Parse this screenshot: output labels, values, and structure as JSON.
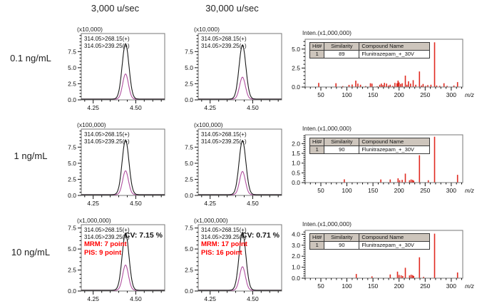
{
  "page": {
    "column_headers": [
      "3,000 u/sec",
      "30,000 u/sec"
    ],
    "row_labels": [
      "0.1 ng/mL",
      "1 ng/mL",
      "10 ng/mL"
    ]
  },
  "chart_data": [
    {
      "kind": "chromatogram",
      "type": "line",
      "concentration": "0.1 ng/mL",
      "scan_speed": "3,000 u/sec",
      "scale_label": "(x10,000)",
      "trace_labels": [
        "314.05>268.15(+)",
        "314.05>239.25(+)"
      ],
      "xlim": [
        4.18,
        4.67
      ],
      "ylim": [
        0,
        10.3
      ],
      "x_ticks": [
        [
          4.25,
          "4.25"
        ],
        [
          4.5,
          "4.50"
        ]
      ],
      "y_ticks": [
        [
          0,
          "0.0"
        ],
        [
          2.5,
          "2.5"
        ],
        [
          5,
          "5.0"
        ],
        [
          7.5,
          "7.5"
        ]
      ],
      "x_minor": 0.05,
      "y_minor": 0.5,
      "retention_time": 4.44,
      "peaks": [
        {
          "series": "314.05>268.15(+)",
          "color": "#1a1a1a",
          "height": 8.6,
          "sigma": 0.02
        },
        {
          "series": "314.05>239.25(+)",
          "color": "#b0509f",
          "height": 3.9,
          "sigma": 0.017
        }
      ]
    },
    {
      "kind": "chromatogram",
      "type": "line",
      "concentration": "0.1 ng/mL",
      "scan_speed": "30,000 u/sec",
      "scale_label": "(x10,000)",
      "trace_labels": [
        "314.05>268.15(+)",
        "314.05>239.25(+)"
      ],
      "xlim": [
        4.18,
        4.67
      ],
      "ylim": [
        0,
        10.3
      ],
      "x_ticks": [
        [
          4.25,
          "4.25"
        ],
        [
          4.5,
          "4.50"
        ]
      ],
      "y_ticks": [
        [
          0,
          "0.0"
        ],
        [
          2.5,
          "2.5"
        ],
        [
          5,
          "5.0"
        ],
        [
          7.5,
          "7.5"
        ]
      ],
      "x_minor": 0.05,
      "y_minor": 0.5,
      "retention_time": 4.44,
      "peaks": [
        {
          "series": "314.05>268.15(+)",
          "color": "#1a1a1a",
          "height": 8.4,
          "sigma": 0.02
        },
        {
          "series": "314.05>239.25(+)",
          "color": "#b0509f",
          "height": 3.4,
          "sigma": 0.017
        }
      ]
    },
    {
      "kind": "spectrum",
      "type": "bar",
      "concentration": "0.1 ng/mL",
      "title": "Inten.(x1,000,000)",
      "xlabel": "m/z",
      "xlim": [
        20,
        322
      ],
      "ylim": [
        0,
        6.3
      ],
      "x_ticks": [
        [
          50,
          "50"
        ],
        [
          100,
          "100"
        ],
        [
          150,
          "150"
        ],
        [
          200,
          "200"
        ],
        [
          250,
          "250"
        ],
        [
          300,
          "300"
        ]
      ],
      "y_ticks": [
        [
          0,
          "0.0"
        ],
        [
          2.5,
          "2.5"
        ],
        [
          5,
          "5.0"
        ]
      ],
      "x_minor": 10,
      "y_minor": 0.5,
      "bar_color": "#e02a20",
      "table": {
        "headers": [
          "Hit#",
          "Similarity",
          "Compound Name"
        ],
        "row": [
          "1",
          "89",
          "Flunitrazepam_+_30V"
        ]
      },
      "peaks_mz_intensity": [
        [
          46,
          0.55
        ],
        [
          79,
          0.5
        ],
        [
          92,
          0.12
        ],
        [
          104,
          0.28
        ],
        [
          110,
          0.33
        ],
        [
          117,
          0.85
        ],
        [
          121,
          0.45
        ],
        [
          126,
          0.3
        ],
        [
          136,
          0.12
        ],
        [
          145,
          0.5
        ],
        [
          148,
          0.45
        ],
        [
          158,
          0.1
        ],
        [
          163,
          0.3
        ],
        [
          166,
          0.45
        ],
        [
          169,
          0.25
        ],
        [
          172,
          0.55
        ],
        [
          176,
          0.45
        ],
        [
          180,
          0.2
        ],
        [
          183,
          0.3
        ],
        [
          188,
          0.15
        ],
        [
          192,
          0.55
        ],
        [
          196,
          0.5
        ],
        [
          198,
          0.85
        ],
        [
          200,
          0.6
        ],
        [
          203,
          0.4
        ],
        [
          206,
          0.5
        ],
        [
          212,
          1.5
        ],
        [
          215,
          0.3
        ],
        [
          218,
          0.75
        ],
        [
          222,
          0.45
        ],
        [
          227,
          0.9
        ],
        [
          232,
          0.3
        ],
        [
          239,
          2.05
        ],
        [
          243,
          0.2
        ],
        [
          246,
          0.4
        ],
        [
          251,
          0.15
        ],
        [
          255,
          0.25
        ],
        [
          261,
          0.3
        ],
        [
          268,
          5.9
        ],
        [
          272,
          0.2
        ],
        [
          278,
          0.15
        ],
        [
          286,
          0.5
        ],
        [
          292,
          0.15
        ],
        [
          305,
          0.2
        ],
        [
          312,
          0.65
        ]
      ]
    },
    {
      "kind": "chromatogram",
      "type": "line",
      "concentration": "1 ng/mL",
      "scan_speed": "3,000 u/sec",
      "scale_label": "(x100,000)",
      "trace_labels": [
        "314.05>268.15(+)",
        "314.05>239.25(+)"
      ],
      "xlim": [
        4.18,
        4.67
      ],
      "ylim": [
        0,
        10.3
      ],
      "x_ticks": [
        [
          4.25,
          "4.25"
        ],
        [
          4.5,
          "4.50"
        ]
      ],
      "y_ticks": [
        [
          0,
          "0.0"
        ],
        [
          2.5,
          "2.5"
        ],
        [
          5,
          "5.0"
        ],
        [
          7.5,
          "7.5"
        ]
      ],
      "x_minor": 0.05,
      "y_minor": 0.5,
      "retention_time": 4.44,
      "peaks": [
        {
          "series": "314.05>268.15(+)",
          "color": "#1a1a1a",
          "height": 8.5,
          "sigma": 0.02
        },
        {
          "series": "314.05>239.25(+)",
          "color": "#b0509f",
          "height": 3.7,
          "sigma": 0.017
        }
      ]
    },
    {
      "kind": "chromatogram",
      "type": "line",
      "concentration": "1 ng/mL",
      "scan_speed": "30,000 u/sec",
      "scale_label": "(x100,000)",
      "trace_labels": [
        "314.05>268.15(+)",
        "314.05>239.25(+)"
      ],
      "xlim": [
        4.18,
        4.67
      ],
      "ylim": [
        0,
        10.3
      ],
      "x_ticks": [
        [
          4.25,
          "4.25"
        ],
        [
          4.5,
          "4.50"
        ]
      ],
      "y_ticks": [
        [
          0,
          "0.0"
        ],
        [
          2.5,
          "2.5"
        ],
        [
          5,
          "5.0"
        ],
        [
          7.5,
          "7.5"
        ]
      ],
      "x_minor": 0.05,
      "y_minor": 0.5,
      "retention_time": 4.44,
      "peaks": [
        {
          "series": "314.05>268.15(+)",
          "color": "#1a1a1a",
          "height": 8.4,
          "sigma": 0.02
        },
        {
          "series": "314.05>239.25(+)",
          "color": "#b0509f",
          "height": 3.6,
          "sigma": 0.017
        }
      ]
    },
    {
      "kind": "spectrum",
      "type": "bar",
      "concentration": "1 ng/mL",
      "title": "Inten.(x1,000,000)",
      "xlabel": "m/z",
      "xlim": [
        20,
        322
      ],
      "ylim": [
        0,
        2.45
      ],
      "x_ticks": [
        [
          50,
          "50"
        ],
        [
          100,
          "100"
        ],
        [
          150,
          "150"
        ],
        [
          200,
          "200"
        ],
        [
          250,
          "250"
        ],
        [
          300,
          "300"
        ]
      ],
      "y_ticks": [
        [
          0,
          "0.0"
        ],
        [
          0.5,
          "0.5"
        ],
        [
          1,
          "1.0"
        ],
        [
          1.5,
          "1.5"
        ],
        [
          2,
          "2.0"
        ]
      ],
      "x_minor": 10,
      "y_minor": 0.1,
      "bar_color": "#e02a20",
      "table": {
        "headers": [
          "Hit#",
          "Similarity",
          "Compound Name"
        ],
        "row": [
          "1",
          "90",
          "Flunitrazepam_+_30V"
        ]
      },
      "peaks_mz_intensity": [
        [
          95,
          0.17
        ],
        [
          165,
          0.16
        ],
        [
          183,
          0.16
        ],
        [
          198,
          0.22
        ],
        [
          201,
          0.12
        ],
        [
          206,
          0.14
        ],
        [
          212,
          0.46
        ],
        [
          220,
          0.12
        ],
        [
          223,
          0.16
        ],
        [
          226,
          0.14
        ],
        [
          228,
          0.1
        ],
        [
          239,
          1.4
        ],
        [
          256,
          0.12
        ],
        [
          268,
          2.35
        ],
        [
          312,
          0.4
        ]
      ]
    },
    {
      "kind": "chromatogram",
      "type": "line",
      "concentration": "10 ng/mL",
      "scan_speed": "3,000 u/sec",
      "scale_label": "(x1,000,000)",
      "trace_labels": [
        "314.05>268.15(+)",
        "314.05>239.25(+)"
      ],
      "annotations": {
        "mrm": "MRM: 7 point",
        "pis": "PIS: 9 point",
        "cv": "CV: 7.15 %"
      },
      "xlim": [
        4.18,
        4.67
      ],
      "ylim": [
        0,
        7.9
      ],
      "x_ticks": [
        [
          4.25,
          "4.25"
        ],
        [
          4.5,
          "4.50"
        ]
      ],
      "y_ticks": [
        [
          0,
          "0.0"
        ],
        [
          2.5,
          "2.5"
        ],
        [
          5,
          "5.0"
        ],
        [
          7.5,
          "7.5"
        ]
      ],
      "x_minor": 0.05,
      "y_minor": 0.5,
      "retention_time": 4.44,
      "peaks": [
        {
          "series": "314.05>268.15(+)",
          "color": "#1a1a1a",
          "height": 6.8,
          "sigma": 0.02
        },
        {
          "series": "314.05>239.25(+)",
          "color": "#b0509f",
          "height": 3.0,
          "sigma": 0.017
        }
      ]
    },
    {
      "kind": "chromatogram",
      "type": "line",
      "concentration": "10 ng/mL",
      "scan_speed": "30,000 u/sec",
      "scale_label": "(x1,000,000)",
      "trace_labels": [
        "314.05>268.15(+)",
        "314.05>239.25(+)"
      ],
      "annotations": {
        "mrm": "MRM: 17 point",
        "pis": "PIS: 16 point",
        "cv": "CV: 0.71 %"
      },
      "xlim": [
        4.18,
        4.67
      ],
      "ylim": [
        0,
        7.9
      ],
      "x_ticks": [
        [
          4.25,
          "4.25"
        ],
        [
          4.5,
          "4.50"
        ]
      ],
      "y_ticks": [
        [
          0,
          "0.0"
        ],
        [
          2.5,
          "2.5"
        ],
        [
          5,
          "5.0"
        ],
        [
          7.5,
          "7.5"
        ]
      ],
      "x_minor": 0.05,
      "y_minor": 0.5,
      "retention_time": 4.44,
      "peaks": [
        {
          "series": "314.05>268.15(+)",
          "color": "#1a1a1a",
          "height": 6.9,
          "sigma": 0.02
        },
        {
          "series": "314.05>239.25(+)",
          "color": "#b0509f",
          "height": 2.8,
          "sigma": 0.017
        }
      ]
    },
    {
      "kind": "spectrum",
      "type": "bar",
      "concentration": "10 ng/mL",
      "title": "Inten.(x1,000,000)",
      "xlabel": "m/z",
      "xlim": [
        20,
        322
      ],
      "ylim": [
        0,
        4.35
      ],
      "x_ticks": [
        [
          50,
          "50"
        ],
        [
          100,
          "100"
        ],
        [
          150,
          "150"
        ],
        [
          200,
          "200"
        ],
        [
          250,
          "250"
        ],
        [
          300,
          "300"
        ]
      ],
      "y_ticks": [
        [
          0,
          "0.0"
        ],
        [
          1,
          "1.0"
        ],
        [
          2,
          "2.0"
        ],
        [
          3,
          "3.0"
        ],
        [
          4,
          "4.0"
        ]
      ],
      "x_minor": 10,
      "y_minor": 0.2,
      "bar_color": "#e02a20",
      "table": {
        "headers": [
          "Hit#",
          "Similarity",
          "Compound Name"
        ],
        "row": [
          "1",
          "90",
          "Flunitrazepam_+_30V"
        ]
      },
      "peaks_mz_intensity": [
        [
          118,
          0.38
        ],
        [
          148,
          0.17
        ],
        [
          183,
          0.34
        ],
        [
          197,
          0.6
        ],
        [
          200,
          0.3
        ],
        [
          204,
          0.26
        ],
        [
          207,
          0.2
        ],
        [
          212,
          0.95
        ],
        [
          220,
          0.25
        ],
        [
          223,
          0.32
        ],
        [
          226,
          0.28
        ],
        [
          228,
          0.2
        ],
        [
          239,
          1.9
        ],
        [
          247,
          0.12
        ],
        [
          268,
          4.05
        ],
        [
          312,
          0.52
        ]
      ]
    }
  ]
}
